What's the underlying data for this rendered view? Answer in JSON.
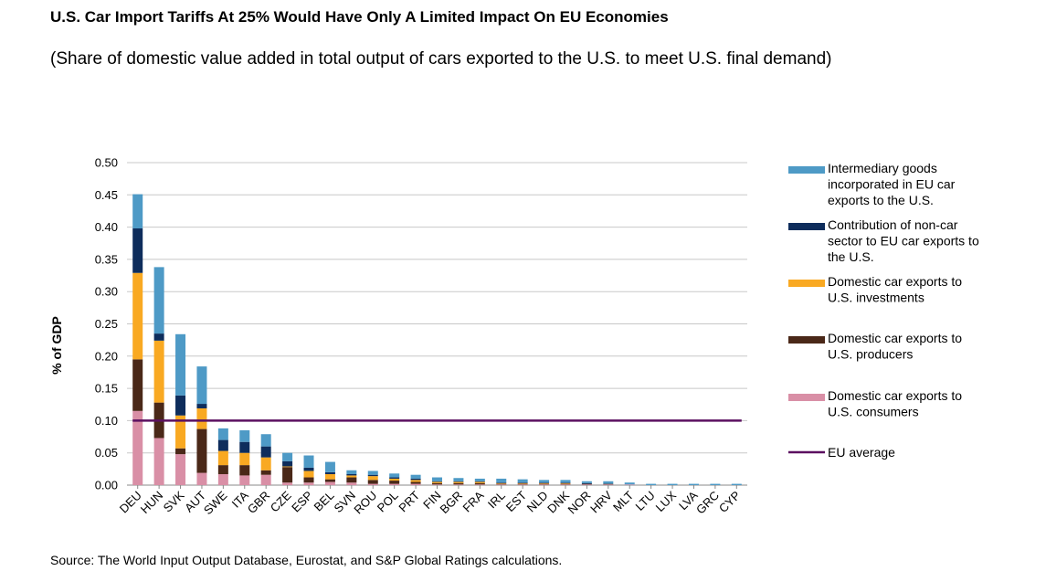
{
  "title": "U.S. Car Import Tariffs At 25% Would Have Only A Limited Impact On EU Economies",
  "subtitle": "(Share of domestic value added in total output of cars exported to the U.S. to meet U.S. final demand)",
  "source": "Source: The World Input Output Database, Eurostat, and S&P Global Ratings calculations.",
  "chart_data": {
    "type": "bar",
    "stacked": true,
    "title": "U.S. Car Import Tariffs At 25% Would Have Only A Limited Impact On EU Economies",
    "subtitle": "(Share of domestic value added in total output of cars exported to the U.S. to meet U.S. final demand)",
    "xlabel": "",
    "ylabel": "% of GDP",
    "ylim": [
      0,
      0.5
    ],
    "yticks": [
      "0.00",
      "0.05",
      "0.10",
      "0.15",
      "0.20",
      "0.25",
      "0.30",
      "0.35",
      "0.40",
      "0.45",
      "0.50"
    ],
    "grid": true,
    "legend_position": "right",
    "categories": [
      "DEU",
      "HUN",
      "SVK",
      "AUT",
      "SWE",
      "ITA",
      "GBR",
      "CZE",
      "ESP",
      "BEL",
      "SVN",
      "ROU",
      "POL",
      "PRT",
      "FIN",
      "BGR",
      "FRA",
      "IRL",
      "EST",
      "NLD",
      "DNK",
      "NOR",
      "HRV",
      "MLT",
      "LTU",
      "LUX",
      "LVA",
      "GRC",
      "CYP"
    ],
    "series": [
      {
        "name": "Domestic car exports to U.S. consumers",
        "color": "#d98fa6",
        "values": [
          0.115,
          0.073,
          0.048,
          0.019,
          0.017,
          0.015,
          0.016,
          0.004,
          0.004,
          0.005,
          0.004,
          0.002,
          0.002,
          0.002,
          0.001,
          0.001,
          0.001,
          0.001,
          0.001,
          0.001,
          0.001,
          0.001,
          0.001,
          0.001,
          0.0,
          0.0,
          0.0,
          0.0,
          0.0
        ]
      },
      {
        "name": "Domestic car exports to U.S. producers",
        "color": "#4a2818",
        "values": [
          0.08,
          0.055,
          0.009,
          0.068,
          0.014,
          0.016,
          0.007,
          0.024,
          0.008,
          0.004,
          0.008,
          0.006,
          0.005,
          0.003,
          0.002,
          0.002,
          0.002,
          0.001,
          0.001,
          0.001,
          0.001,
          0.001,
          0.001,
          0.0,
          0.0,
          0.0,
          0.0,
          0.0,
          0.0
        ]
      },
      {
        "name": "Domestic car exports to U.S. investments",
        "color": "#f9a922",
        "values": [
          0.134,
          0.096,
          0.051,
          0.032,
          0.022,
          0.019,
          0.02,
          0.001,
          0.01,
          0.008,
          0.003,
          0.006,
          0.003,
          0.003,
          0.002,
          0.002,
          0.002,
          0.001,
          0.001,
          0.001,
          0.001,
          0.0,
          0.0,
          0.0,
          0.0,
          0.0,
          0.0,
          0.0,
          0.0
        ]
      },
      {
        "name": "Contribution of non-car sector to EU car exports to the U.S.",
        "color": "#0e2d5c",
        "values": [
          0.069,
          0.011,
          0.031,
          0.007,
          0.017,
          0.017,
          0.017,
          0.008,
          0.005,
          0.003,
          0.002,
          0.002,
          0.002,
          0.002,
          0.001,
          0.001,
          0.001,
          0.001,
          0.001,
          0.001,
          0.001,
          0.001,
          0.0,
          0.0,
          0.0,
          0.0,
          0.0,
          0.0,
          0.0
        ]
      },
      {
        "name": "Intermediary goods incorporated in EU car exports to the U.S.",
        "color": "#4e9ac6",
        "values": [
          0.053,
          0.103,
          0.095,
          0.058,
          0.018,
          0.018,
          0.019,
          0.013,
          0.019,
          0.016,
          0.006,
          0.006,
          0.006,
          0.006,
          0.006,
          0.005,
          0.004,
          0.006,
          0.005,
          0.004,
          0.004,
          0.003,
          0.004,
          0.003,
          0.002,
          0.002,
          0.002,
          0.002,
          0.002
        ]
      }
    ],
    "reference_line": {
      "name": "EU average",
      "value": 0.1,
      "color": "#5b1060"
    }
  }
}
